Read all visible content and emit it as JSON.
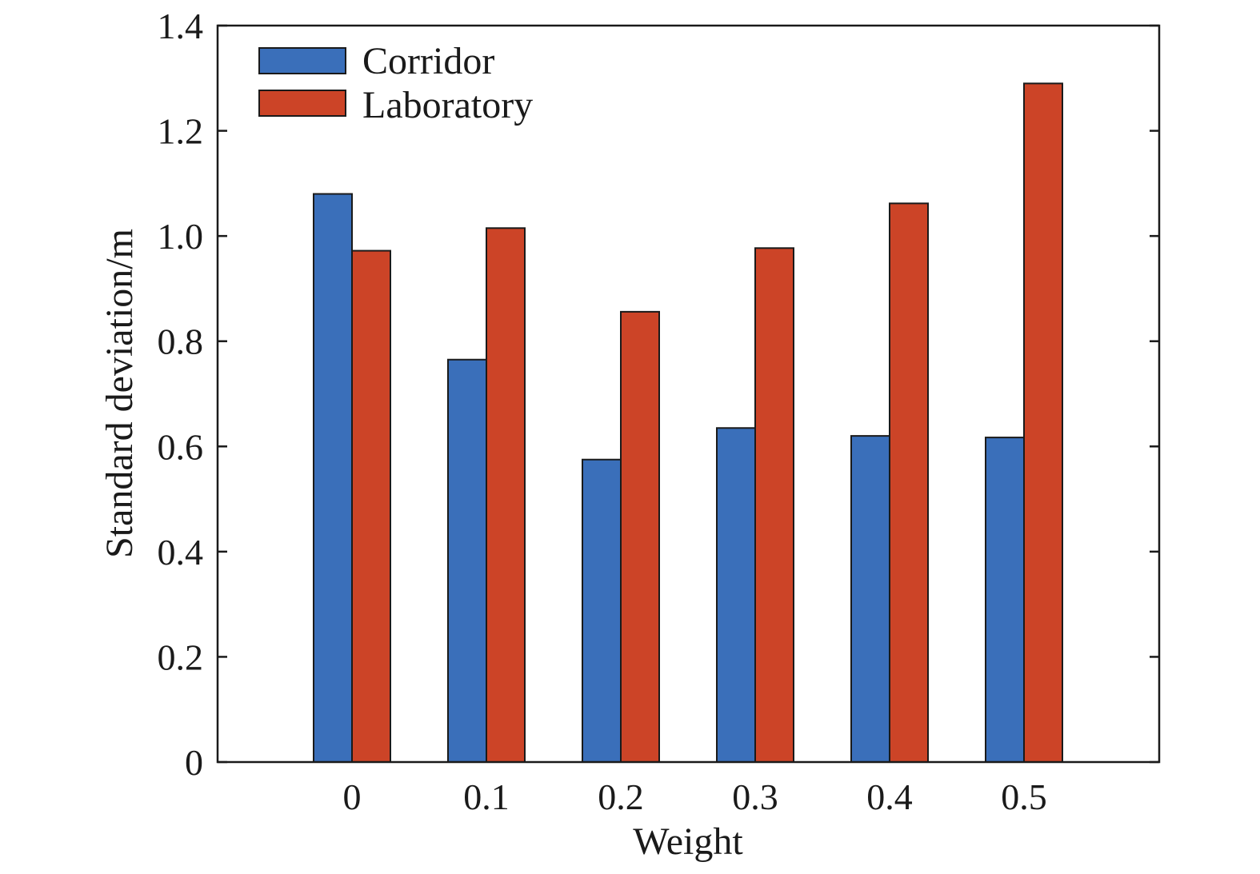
{
  "chart_data": {
    "type": "bar",
    "title": "",
    "xlabel": "Weight",
    "ylabel": "Standard deviation/m",
    "categories": [
      "0",
      "0.1",
      "0.2",
      "0.3",
      "0.4",
      "0.5"
    ],
    "ylim": [
      0,
      1.4
    ],
    "yticks": [
      "0",
      "0.2",
      "0.4",
      "0.6",
      "0.8",
      "1.0",
      "1.2",
      "1.4"
    ],
    "grid": false,
    "legend_position": "top-left",
    "series": [
      {
        "name": "Corridor",
        "color": "#3a6fba",
        "values": [
          1.08,
          0.765,
          0.575,
          0.635,
          0.62,
          0.617
        ]
      },
      {
        "name": "Laboratory",
        "color": "#cc4427",
        "values": [
          0.972,
          1.015,
          0.856,
          0.977,
          1.062,
          1.29
        ]
      }
    ]
  }
}
